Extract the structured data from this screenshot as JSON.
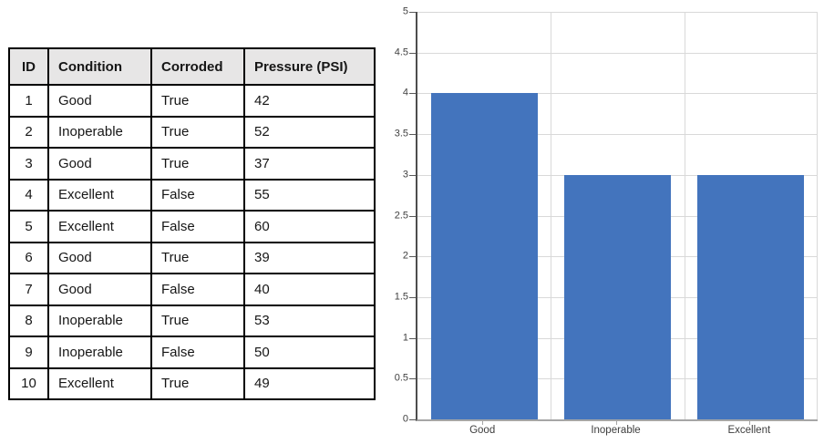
{
  "table": {
    "headers": [
      "ID",
      "Condition",
      "Corroded",
      "Pressure (PSI)"
    ],
    "rows": [
      [
        "1",
        "Good",
        "True",
        "42"
      ],
      [
        "2",
        "Inoperable",
        "True",
        "52"
      ],
      [
        "3",
        "Good",
        "True",
        "37"
      ],
      [
        "4",
        "Excellent",
        "False",
        "55"
      ],
      [
        "5",
        "Excellent",
        "False",
        "60"
      ],
      [
        "6",
        "Good",
        "True",
        "39"
      ],
      [
        "7",
        "Good",
        "False",
        "40"
      ],
      [
        "8",
        "Inoperable",
        "True",
        "53"
      ],
      [
        "9",
        "Inoperable",
        "False",
        "50"
      ],
      [
        "10",
        "Excellent",
        "True",
        "49"
      ]
    ]
  },
  "chart_data": {
    "type": "bar",
    "categories": [
      "Good",
      "Inoperable",
      "Excellent"
    ],
    "values": [
      4,
      3,
      3
    ],
    "title": "",
    "xlabel": "",
    "ylabel": "",
    "ylim": [
      0,
      5
    ],
    "ytick_step": 0.5,
    "yticks": [
      "0",
      "0.5",
      "1",
      "1.5",
      "2",
      "2.5",
      "3",
      "3.5",
      "4",
      "4.5",
      "5"
    ],
    "grid": true,
    "legend_position": "none",
    "bar_color": "#4374BD"
  },
  "colors": {
    "bar_fill": "#4374BD",
    "table_header_bg": "#e7e6e6",
    "table_border": "#000000",
    "gridline": "#d9d9d9",
    "y_axis": "#4d4d4d",
    "x_axis": "#a6a6a6",
    "tick_text": "#404040"
  }
}
